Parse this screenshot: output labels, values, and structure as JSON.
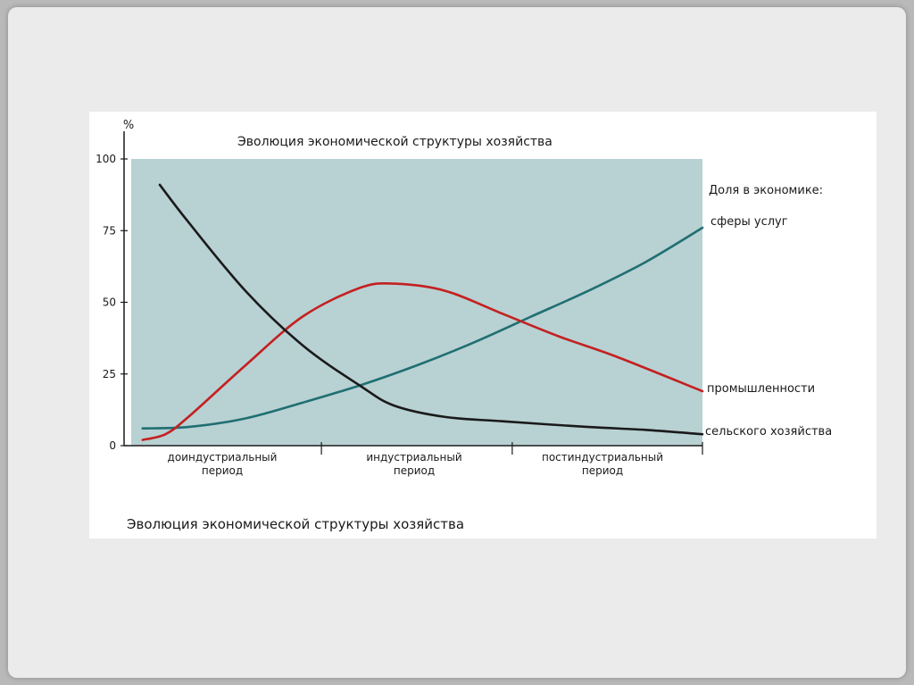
{
  "slide": {
    "caption": "Эволюция экономической структуры хозяйства"
  },
  "colors": {
    "plot_background": "#b8d1d3",
    "agriculture": "#1a1a1a",
    "industry": "#c42020",
    "services": "#1f6f72"
  },
  "chart_data": {
    "type": "line",
    "title": "Эволюция экономической структуры хозяйства",
    "ylabel": "%",
    "ylim": [
      0,
      100
    ],
    "yticks": [
      "0",
      "25",
      "50",
      "75",
      "100"
    ],
    "ytick_values": [
      0,
      25,
      50,
      75,
      100
    ],
    "xlim": [
      0,
      100
    ],
    "periods": [
      {
        "line1": "доиндустриальный",
        "line2": "период"
      },
      {
        "line1": "индустриальный",
        "line2": "период"
      },
      {
        "line1": "постиндустриальный",
        "line2": "период"
      }
    ],
    "legend_title": "Доля в экономике:",
    "series": [
      {
        "name": "сферы услуг",
        "color": "#1f6f72",
        "points": [
          [
            2,
            6
          ],
          [
            10,
            6.5
          ],
          [
            20,
            9.5
          ],
          [
            30,
            15
          ],
          [
            40,
            21
          ],
          [
            50,
            28
          ],
          [
            60,
            36
          ],
          [
            70,
            45
          ],
          [
            80,
            54
          ],
          [
            90,
            64
          ],
          [
            100,
            76
          ]
        ]
      },
      {
        "name": "промышленности",
        "color": "#c42020",
        "points": [
          [
            2,
            2
          ],
          [
            6,
            4
          ],
          [
            10,
            10
          ],
          [
            20,
            28
          ],
          [
            30,
            45
          ],
          [
            40,
            55
          ],
          [
            46,
            56.5
          ],
          [
            55,
            54
          ],
          [
            65,
            46
          ],
          [
            75,
            38
          ],
          [
            85,
            31
          ],
          [
            100,
            19
          ]
        ]
      },
      {
        "name": "сельского хозяйства",
        "color": "#1a1a1a",
        "points": [
          [
            5,
            91
          ],
          [
            10,
            78
          ],
          [
            20,
            54
          ],
          [
            30,
            35
          ],
          [
            40,
            21
          ],
          [
            46,
            14
          ],
          [
            55,
            10
          ],
          [
            65,
            8.5
          ],
          [
            80,
            6.5
          ],
          [
            90,
            5.5
          ],
          [
            100,
            4
          ]
        ]
      }
    ]
  }
}
